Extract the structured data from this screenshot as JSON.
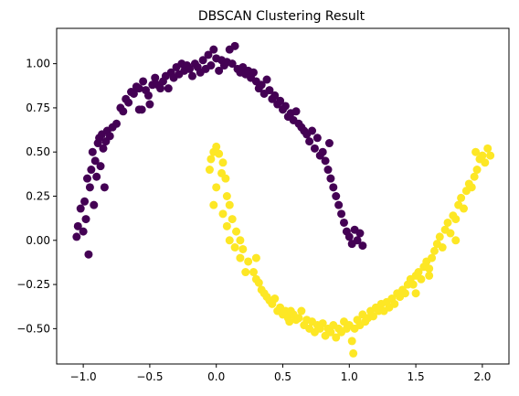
{
  "chart_data": {
    "type": "scatter",
    "title": "DBSCAN Clustering Result",
    "xlabel": "",
    "ylabel": "",
    "xlim": [
      -1.2,
      2.2
    ],
    "ylim": [
      -0.7,
      1.2
    ],
    "xticks": [
      -1.0,
      -0.5,
      0.0,
      0.5,
      1.0,
      1.5,
      2.0
    ],
    "xtick_labels": [
      "−1.0",
      "−0.5",
      "0.0",
      "0.5",
      "1.0",
      "1.5",
      "2.0"
    ],
    "yticks": [
      -0.5,
      -0.25,
      0.0,
      0.25,
      0.5,
      0.75,
      1.0
    ],
    "ytick_labels": [
      "−0.50",
      "−0.25",
      "0.00",
      "0.25",
      "0.50",
      "0.75",
      "1.00"
    ],
    "grid": false,
    "legend": "none",
    "colors": {
      "cluster_0": "#440154",
      "cluster_1": "#fde725"
    },
    "series": [
      {
        "color": "#440154",
        "points": [
          [
            -1.05,
            0.02
          ],
          [
            -1.04,
            0.08
          ],
          [
            -1.02,
            0.18
          ],
          [
            -1.0,
            0.05
          ],
          [
            -0.99,
            0.22
          ],
          [
            -0.97,
            0.35
          ],
          [
            -0.96,
            -0.08
          ],
          [
            -0.95,
            0.3
          ],
          [
            -0.94,
            0.4
          ],
          [
            -0.93,
            0.5
          ],
          [
            -0.92,
            0.2
          ],
          [
            -0.91,
            0.45
          ],
          [
            -0.9,
            0.36
          ],
          [
            -0.89,
            0.55
          ],
          [
            -0.88,
            0.58
          ],
          [
            -0.87,
            0.42
          ],
          [
            -0.86,
            0.6
          ],
          [
            -0.85,
            0.52
          ],
          [
            -0.84,
            0.3
          ],
          [
            -0.83,
            0.56
          ],
          [
            -0.82,
            0.62
          ],
          [
            -0.8,
            0.59
          ],
          [
            -0.78,
            0.64
          ],
          [
            -0.75,
            0.66
          ],
          [
            -0.72,
            0.75
          ],
          [
            -0.7,
            0.73
          ],
          [
            -0.68,
            0.8
          ],
          [
            -0.66,
            0.78
          ],
          [
            -0.64,
            0.84
          ],
          [
            -0.62,
            0.83
          ],
          [
            -0.6,
            0.87
          ],
          [
            -0.58,
            0.86
          ],
          [
            -0.56,
            0.74
          ],
          [
            -0.55,
            0.9
          ],
          [
            -0.53,
            0.85
          ],
          [
            -0.51,
            0.82
          ],
          [
            -0.5,
            0.77
          ],
          [
            -0.48,
            0.88
          ],
          [
            -0.46,
            0.92
          ],
          [
            -0.44,
            0.88
          ],
          [
            -0.42,
            0.86
          ],
          [
            -0.4,
            0.9
          ],
          [
            -0.38,
            0.93
          ],
          [
            -0.36,
            0.86
          ],
          [
            -0.34,
            0.95
          ],
          [
            -0.32,
            0.92
          ],
          [
            -0.3,
            0.98
          ],
          [
            -0.28,
            0.94
          ],
          [
            -0.26,
            1.0
          ],
          [
            -0.24,
            0.96
          ],
          [
            -0.22,
            0.99
          ],
          [
            -0.2,
            0.97
          ],
          [
            -0.18,
            0.93
          ],
          [
            -0.16,
            1.0
          ],
          [
            -0.14,
            0.98
          ],
          [
            -0.12,
            0.95
          ],
          [
            -0.1,
            1.02
          ],
          [
            -0.08,
            0.97
          ],
          [
            -0.06,
            1.05
          ],
          [
            -0.04,
            0.99
          ],
          [
            -0.02,
            1.08
          ],
          [
            0.0,
            1.03
          ],
          [
            0.02,
            0.96
          ],
          [
            0.04,
            1.02
          ],
          [
            0.06,
            0.99
          ],
          [
            0.08,
            1.01
          ],
          [
            0.1,
            1.08
          ],
          [
            0.12,
            1.0
          ],
          [
            0.14,
            1.1
          ],
          [
            0.16,
            0.97
          ],
          [
            0.18,
            0.95
          ],
          [
            0.2,
            0.98
          ],
          [
            0.22,
            0.94
          ],
          [
            0.24,
            0.96
          ],
          [
            0.26,
            0.92
          ],
          [
            0.28,
            0.95
          ],
          [
            0.3,
            0.9
          ],
          [
            0.32,
            0.86
          ],
          [
            0.34,
            0.88
          ],
          [
            0.36,
            0.83
          ],
          [
            0.38,
            0.91
          ],
          [
            0.4,
            0.85
          ],
          [
            0.42,
            0.8
          ],
          [
            0.44,
            0.82
          ],
          [
            0.46,
            0.77
          ],
          [
            0.48,
            0.79
          ],
          [
            0.5,
            0.74
          ],
          [
            0.52,
            0.76
          ],
          [
            0.54,
            0.7
          ],
          [
            0.56,
            0.72
          ],
          [
            0.58,
            0.68
          ],
          [
            0.6,
            0.73
          ],
          [
            0.62,
            0.66
          ],
          [
            0.64,
            0.64
          ],
          [
            0.66,
            0.62
          ],
          [
            0.68,
            0.6
          ],
          [
            0.7,
            0.56
          ],
          [
            0.72,
            0.62
          ],
          [
            0.74,
            0.52
          ],
          [
            0.76,
            0.58
          ],
          [
            0.78,
            0.48
          ],
          [
            0.8,
            0.5
          ],
          [
            0.82,
            0.45
          ],
          [
            0.84,
            0.4
          ],
          [
            0.86,
            0.35
          ],
          [
            0.88,
            0.3
          ],
          [
            0.9,
            0.25
          ],
          [
            0.92,
            0.2
          ],
          [
            0.94,
            0.15
          ],
          [
            0.96,
            0.1
          ],
          [
            0.98,
            0.05
          ],
          [
            1.0,
            0.02
          ],
          [
            1.02,
            -0.02
          ],
          [
            1.04,
            0.06
          ],
          [
            1.06,
            0.0
          ],
          [
            1.08,
            0.04
          ],
          [
            1.1,
            -0.03
          ],
          [
            0.85,
            0.55
          ],
          [
            -0.98,
            0.12
          ],
          [
            -0.58,
            0.74
          ]
        ]
      },
      {
        "color": "#fde725",
        "points": [
          [
            0.0,
            0.53
          ],
          [
            -0.02,
            0.5
          ],
          [
            -0.04,
            0.46
          ],
          [
            0.02,
            0.49
          ],
          [
            0.05,
            0.44
          ],
          [
            -0.05,
            0.4
          ],
          [
            0.04,
            0.38
          ],
          [
            0.07,
            0.35
          ],
          [
            0.0,
            0.3
          ],
          [
            0.08,
            0.25
          ],
          [
            -0.02,
            0.2
          ],
          [
            0.1,
            0.2
          ],
          [
            0.05,
            0.15
          ],
          [
            0.12,
            0.12
          ],
          [
            0.08,
            0.08
          ],
          [
            0.15,
            0.05
          ],
          [
            0.1,
            0.0
          ],
          [
            0.18,
            0.0
          ],
          [
            0.14,
            -0.04
          ],
          [
            0.2,
            -0.05
          ],
          [
            0.18,
            -0.1
          ],
          [
            0.24,
            -0.12
          ],
          [
            0.22,
            -0.18
          ],
          [
            0.28,
            -0.18
          ],
          [
            0.3,
            -0.22
          ],
          [
            0.32,
            -0.24
          ],
          [
            0.34,
            -0.28
          ],
          [
            0.36,
            -0.3
          ],
          [
            0.38,
            -0.32
          ],
          [
            0.4,
            -0.34
          ],
          [
            0.42,
            -0.36
          ],
          [
            0.44,
            -0.33
          ],
          [
            0.46,
            -0.4
          ],
          [
            0.48,
            -0.38
          ],
          [
            0.5,
            -0.42
          ],
          [
            0.52,
            -0.4
          ],
          [
            0.54,
            -0.44
          ],
          [
            0.56,
            -0.4
          ],
          [
            0.58,
            -0.42
          ],
          [
            0.6,
            -0.45
          ],
          [
            0.62,
            -0.44
          ],
          [
            0.64,
            -0.4
          ],
          [
            0.66,
            -0.48
          ],
          [
            0.68,
            -0.45
          ],
          [
            0.7,
            -0.5
          ],
          [
            0.72,
            -0.46
          ],
          [
            0.74,
            -0.52
          ],
          [
            0.76,
            -0.48
          ],
          [
            0.78,
            -0.5
          ],
          [
            0.8,
            -0.47
          ],
          [
            0.82,
            -0.54
          ],
          [
            0.84,
            -0.5
          ],
          [
            0.86,
            -0.52
          ],
          [
            0.88,
            -0.48
          ],
          [
            0.9,
            -0.55
          ],
          [
            0.92,
            -0.5
          ],
          [
            0.94,
            -0.52
          ],
          [
            0.96,
            -0.46
          ],
          [
            0.98,
            -0.5
          ],
          [
            1.0,
            -0.48
          ],
          [
            1.02,
            -0.57
          ],
          [
            1.03,
            -0.64
          ],
          [
            1.04,
            -0.5
          ],
          [
            1.06,
            -0.45
          ],
          [
            1.08,
            -0.48
          ],
          [
            1.1,
            -0.42
          ],
          [
            1.12,
            -0.46
          ],
          [
            1.14,
            -0.44
          ],
          [
            1.16,
            -0.4
          ],
          [
            1.18,
            -0.43
          ],
          [
            1.2,
            -0.38
          ],
          [
            1.22,
            -0.4
          ],
          [
            1.24,
            -0.36
          ],
          [
            1.26,
            -0.4
          ],
          [
            1.28,
            -0.35
          ],
          [
            1.3,
            -0.38
          ],
          [
            1.32,
            -0.33
          ],
          [
            1.34,
            -0.36
          ],
          [
            1.36,
            -0.3
          ],
          [
            1.38,
            -0.32
          ],
          [
            1.4,
            -0.28
          ],
          [
            1.42,
            -0.3
          ],
          [
            1.44,
            -0.25
          ],
          [
            1.46,
            -0.22
          ],
          [
            1.48,
            -0.25
          ],
          [
            1.5,
            -0.2
          ],
          [
            1.52,
            -0.18
          ],
          [
            1.54,
            -0.22
          ],
          [
            1.56,
            -0.15
          ],
          [
            1.58,
            -0.12
          ],
          [
            1.6,
            -0.16
          ],
          [
            1.62,
            -0.1
          ],
          [
            1.64,
            -0.06
          ],
          [
            1.66,
            -0.02
          ],
          [
            1.68,
            0.02
          ],
          [
            1.7,
            -0.04
          ],
          [
            1.72,
            0.06
          ],
          [
            1.74,
            0.1
          ],
          [
            1.76,
            0.04
          ],
          [
            1.78,
            0.14
          ],
          [
            1.8,
            0.12
          ],
          [
            1.82,
            0.2
          ],
          [
            1.84,
            0.24
          ],
          [
            1.86,
            0.18
          ],
          [
            1.88,
            0.28
          ],
          [
            1.9,
            0.32
          ],
          [
            1.92,
            0.3
          ],
          [
            1.94,
            0.36
          ],
          [
            1.96,
            0.4
          ],
          [
            1.98,
            0.46
          ],
          [
            2.0,
            0.48
          ],
          [
            2.02,
            0.44
          ],
          [
            2.04,
            0.52
          ],
          [
            2.06,
            0.48
          ],
          [
            1.95,
            0.5
          ],
          [
            1.5,
            -0.3
          ],
          [
            1.8,
            0.0
          ],
          [
            0.3,
            -0.1
          ],
          [
            0.55,
            -0.46
          ],
          [
            1.6,
            -0.2
          ]
        ]
      }
    ]
  }
}
